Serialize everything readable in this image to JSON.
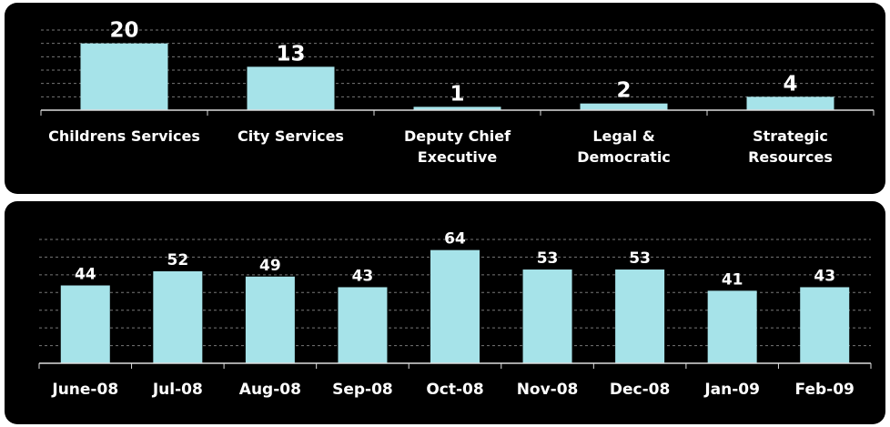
{
  "chart_data": [
    {
      "type": "bar",
      "categories": [
        "Childrens Services",
        "City Services",
        "Deputy Chief Executive",
        "Legal & Democratic",
        "Strategic Resources"
      ],
      "values": [
        20,
        13,
        1,
        2,
        4
      ],
      "color": "#a6e3e9",
      "ylim": [
        0,
        24
      ],
      "yticks": [
        0,
        4,
        8,
        12,
        16,
        20,
        24
      ],
      "grid": true
    },
    {
      "type": "bar",
      "categories": [
        "June-08",
        "Jul-08",
        "Aug-08",
        "Sep-08",
        "Oct-08",
        "Nov-08",
        "Dec-08",
        "Jan-09",
        "Feb-09"
      ],
      "values": [
        44,
        52,
        49,
        43,
        64,
        53,
        53,
        41,
        43
      ],
      "color": "#a6e3e9",
      "ylim": [
        0,
        70
      ],
      "yticks": [
        0,
        10,
        20,
        30,
        40,
        50,
        60,
        70
      ],
      "grid": true
    }
  ]
}
